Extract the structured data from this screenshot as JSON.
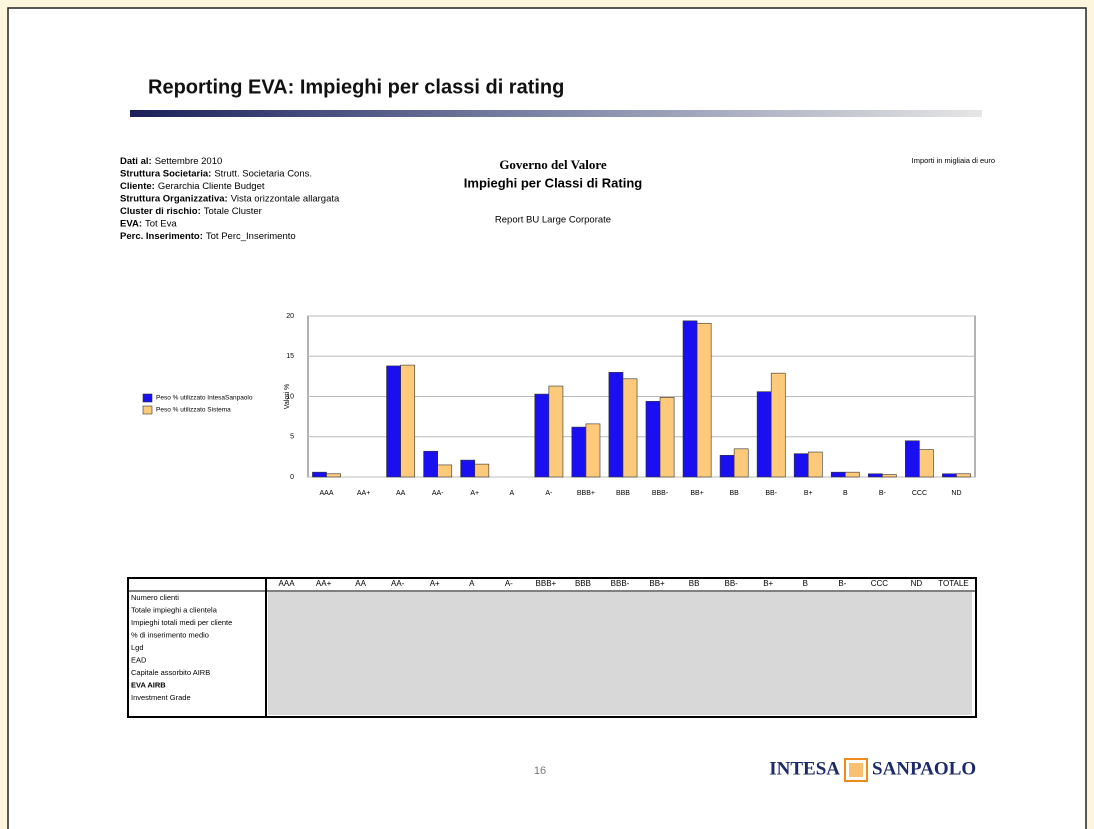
{
  "header": {
    "title": "Reporting EVA: Impieghi per classi di rating"
  },
  "info": [
    {
      "label": "Dati al:",
      "value": "Settembre 2010"
    },
    {
      "label": "Struttura Societaria:",
      "value": "Strutt. Societaria Cons."
    },
    {
      "label": "Cliente:",
      "value": "Gerarchia Cliente Budget"
    },
    {
      "label": "Struttura Organizzativa:",
      "value": "Vista orizzontale allargata"
    },
    {
      "label": "Cluster di rischio:",
      "value": "Totale Cluster"
    },
    {
      "label": "EVA:",
      "value": "Tot Eva"
    },
    {
      "label": "Perc. Inserimento:",
      "value": "Tot Perc_Inserimento"
    }
  ],
  "report": {
    "heading": "Governo del Valore",
    "title": "Impieghi per Classi di Rating",
    "subtitle": "Report BU Large Corporate",
    "units": "Importi in migliaia di euro"
  },
  "chart_data": {
    "type": "bar",
    "categories": [
      "AAA",
      "AA+",
      "AA",
      "AA-",
      "A+",
      "A",
      "A-",
      "BBB+",
      "BBB",
      "BBB-",
      "BB+",
      "BB",
      "BB-",
      "B+",
      "B",
      "B-",
      "CCC",
      "ND"
    ],
    "series": [
      {
        "name": "Peso % utilizzato IntesaSanpaolo",
        "color": "#1a0ff0",
        "values": [
          0.6,
          0,
          13.8,
          3.2,
          2.1,
          0,
          10.3,
          6.2,
          13.0,
          9.4,
          19.4,
          2.7,
          10.6,
          2.9,
          0.6,
          0.4,
          4.5,
          0.4
        ]
      },
      {
        "name": "Peso % utilizzato Sistema",
        "color": "#fdc97a",
        "values": [
          0.4,
          0,
          13.9,
          1.5,
          1.6,
          0,
          11.3,
          6.6,
          12.2,
          9.9,
          19.1,
          3.5,
          12.9,
          3.1,
          0.6,
          0.3,
          3.4,
          0.4
        ]
      }
    ],
    "ylabel": "Valori %",
    "ylim": [
      0,
      20
    ],
    "yticks": [
      0,
      5,
      10,
      15,
      20
    ],
    "grid": true
  },
  "table": {
    "columns": [
      "AAA",
      "AA+",
      "AA",
      "AA-",
      "A+",
      "A",
      "A-",
      "BBB+",
      "BBB",
      "BBB-",
      "BB+",
      "BB",
      "BB-",
      "B+",
      "B",
      "B-",
      "CCC",
      "ND",
      "TOTALE"
    ],
    "rows": [
      "Numero clienti",
      "Totale impieghi a clientela",
      "Impieghi totali medi per cliente",
      "% di inserimento medio",
      "Lgd",
      "EAD",
      "Capitale assorbito AIRB",
      "EVA AIRB",
      "Investment Grade"
    ]
  },
  "footer": {
    "page": "16",
    "logo_left": "INTESA",
    "logo_right": "SANPAOLO"
  }
}
